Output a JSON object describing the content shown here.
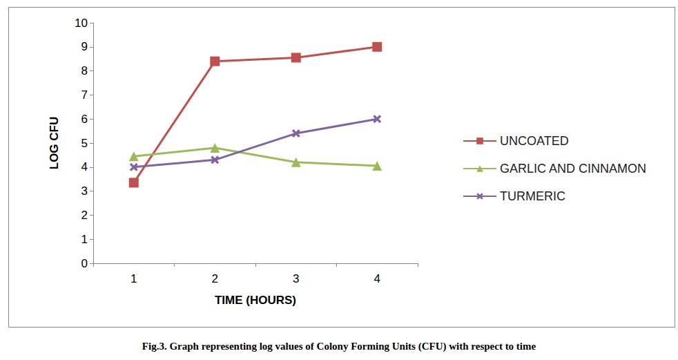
{
  "chart_data": {
    "type": "line",
    "title": "Fig.3. Graph representing log values of Colony Forming Units (CFU) with respect to time",
    "x_label": "TIME (HOURS)",
    "y_label": "LOG CFU",
    "categories": [
      "1",
      "2",
      "3",
      "4"
    ],
    "series": [
      {
        "name": "UNCOATED",
        "color": "#c0504d",
        "marker": "square",
        "values": [
          3.35,
          8.4,
          8.55,
          9.0
        ]
      },
      {
        "name": "GARLIC AND CINNAMON",
        "color": "#9bbb59",
        "marker": "triangle",
        "values": [
          4.45,
          4.8,
          4.2,
          4.05
        ]
      },
      {
        "name": "TURMERIC",
        "color": "#8064a2",
        "marker": "x",
        "values": [
          4.0,
          4.3,
          5.4,
          6.0
        ]
      }
    ],
    "ylim": [
      0,
      10
    ],
    "yticks": [
      0,
      1,
      2,
      3,
      4,
      5,
      6,
      7,
      8,
      9,
      10
    ],
    "grid": false,
    "legend": "right"
  }
}
